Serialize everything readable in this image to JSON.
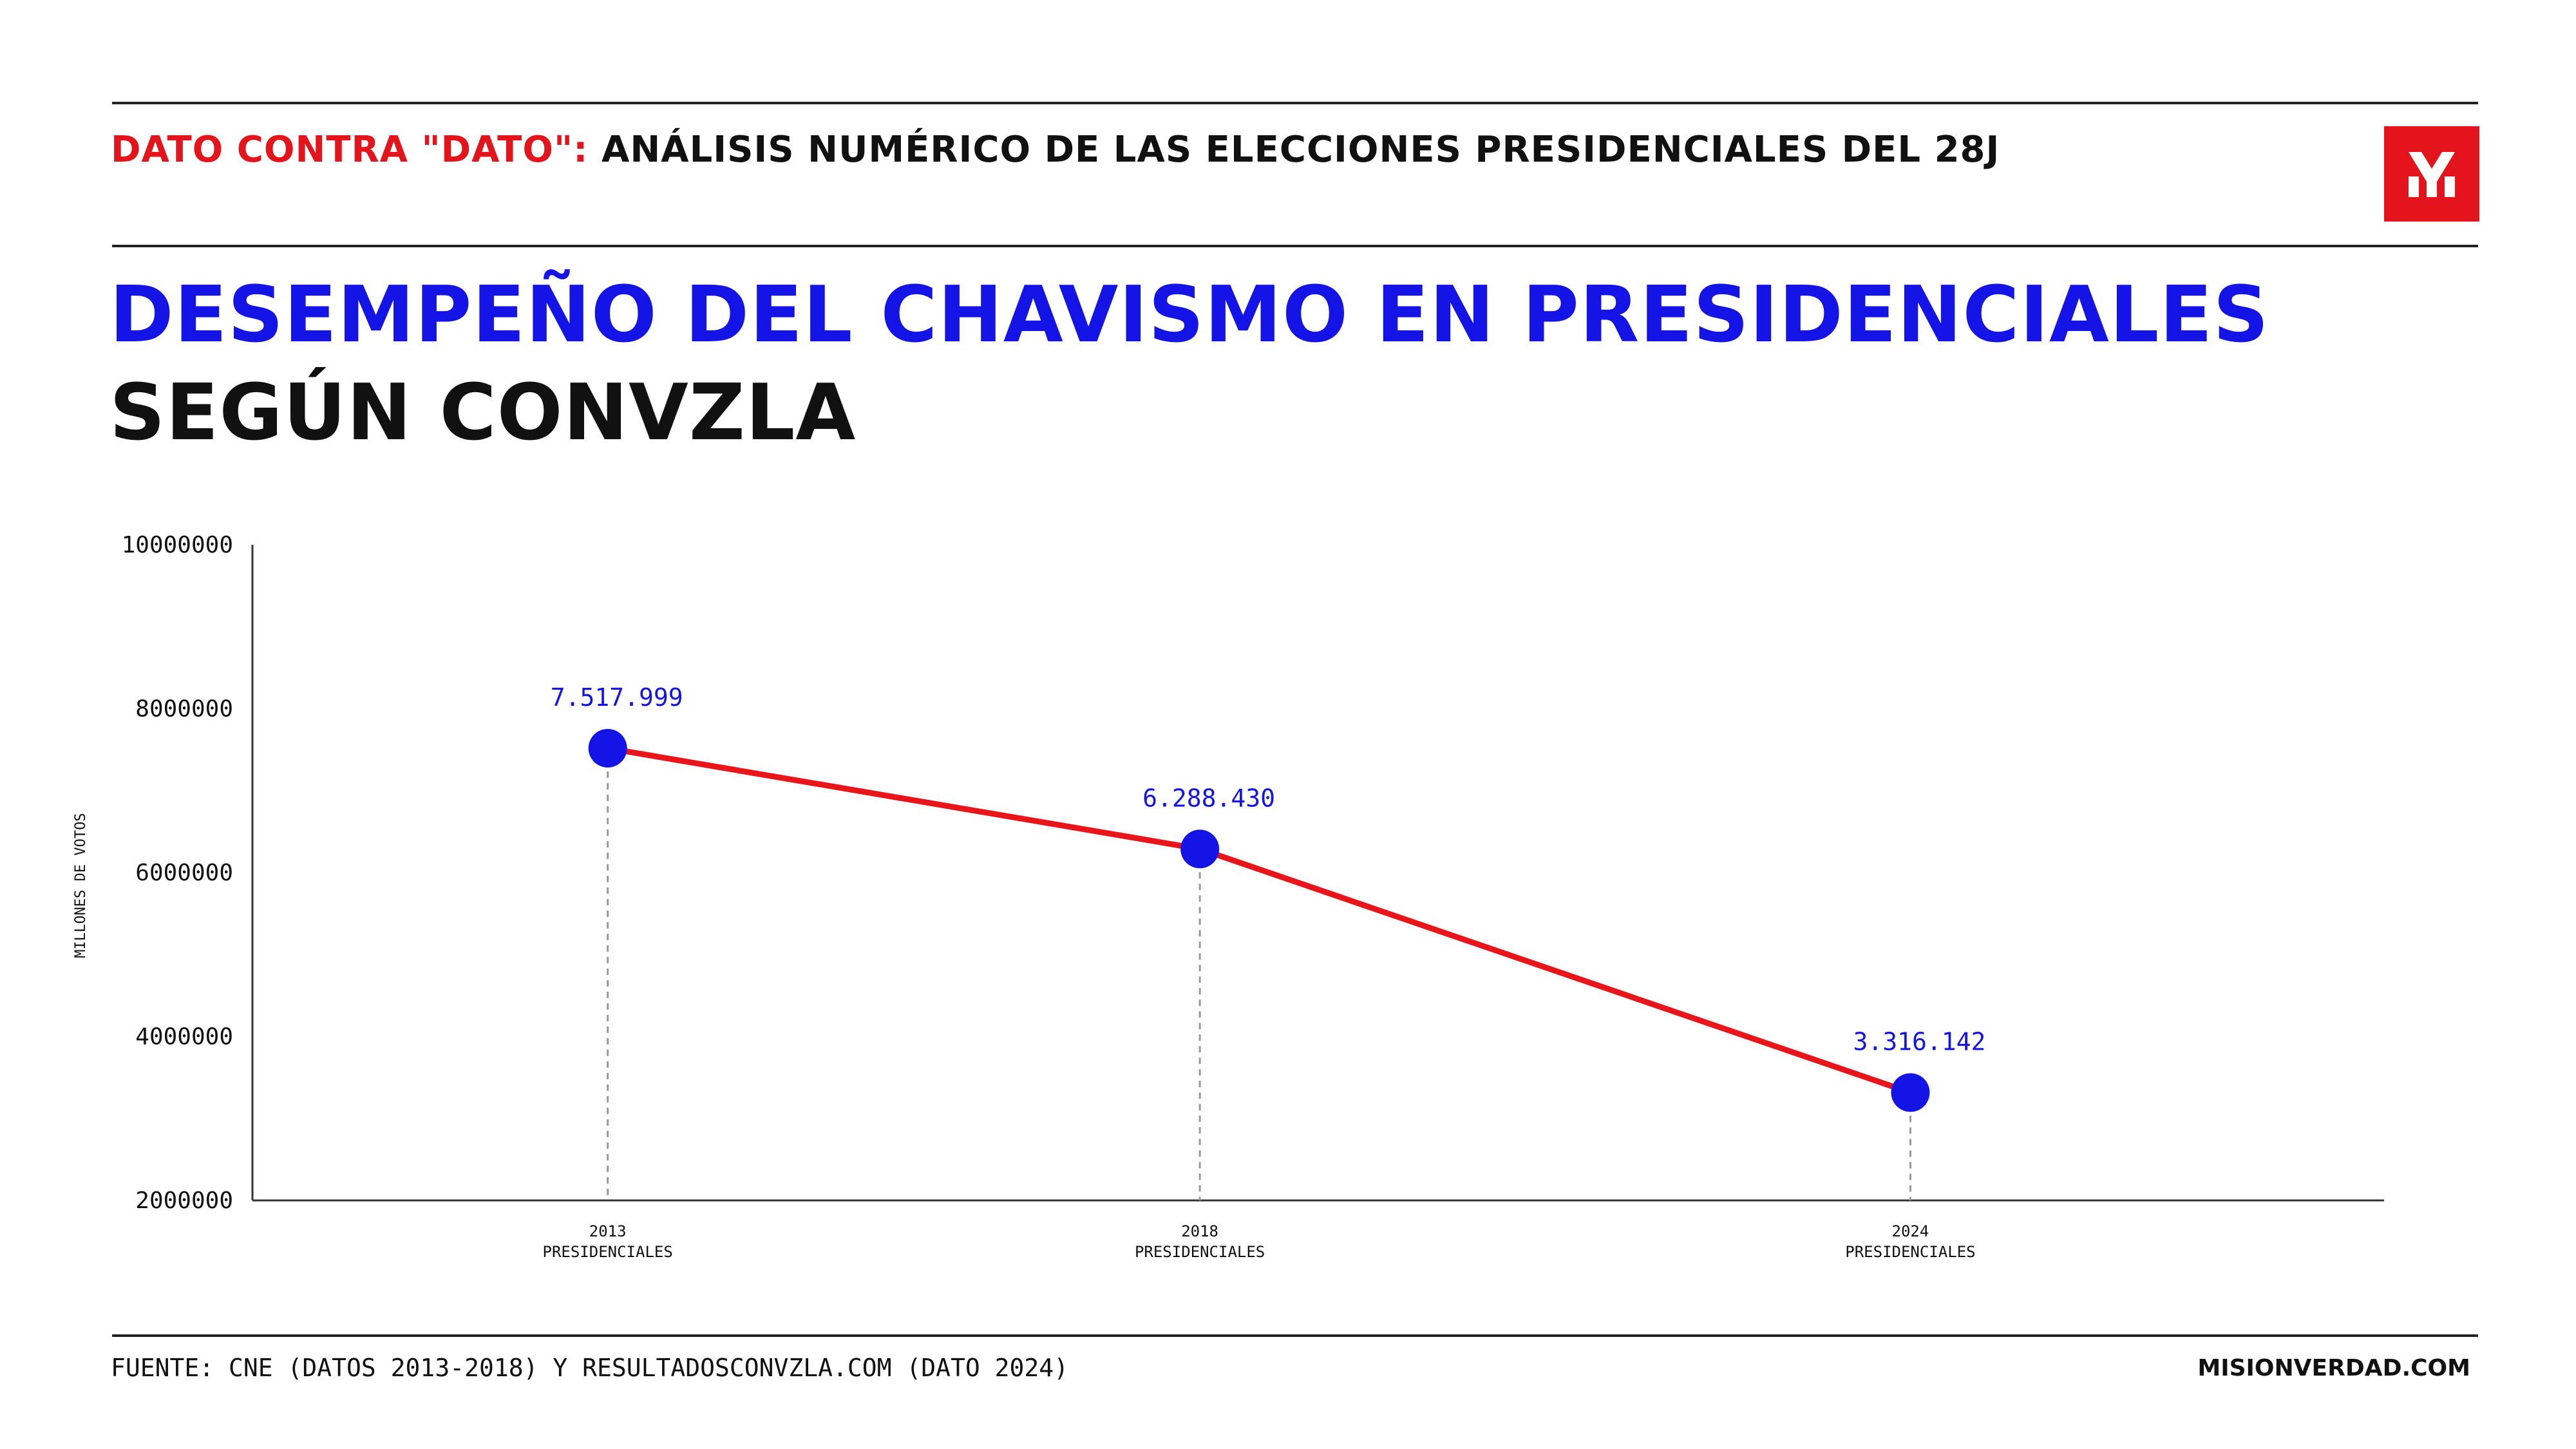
{
  "header": {
    "kicker_red": "DATO CONTRA \"DATO\":",
    "kicker_black": "ANÁLISIS NUMÉRICO DE LAS ELECCIONES PRESIDENCIALES DEL 28J",
    "logo_icon": "misionverdad-logo-icon",
    "accent_color": "#e3141b"
  },
  "title_line_1": "DESEMPEÑO DEL CHAVISMO EN PRESIDENCIALES",
  "title_line_2": "SEGÚN CONVZLA",
  "chart_data": {
    "type": "line",
    "ylabel": "MILLONES DE VOTOS",
    "ylim": [
      2000000,
      10000000
    ],
    "yticks": [
      2000000,
      4000000,
      6000000,
      8000000,
      10000000
    ],
    "ytick_labels": [
      "2000000",
      "4000000",
      "6000000",
      "8000000",
      "10000000"
    ],
    "x": [
      2013,
      2018,
      2024
    ],
    "categories": [
      {
        "year": "2013",
        "label": "PRESIDENCIALES"
      },
      {
        "year": "2018",
        "label": "PRESIDENCIALES"
      },
      {
        "year": "2024",
        "label": "PRESIDENCIALES"
      }
    ],
    "series": [
      {
        "values": [
          7517999,
          6288430,
          3316142
        ],
        "data_labels": [
          "7.517.999",
          "6.288.430",
          "3.316.142"
        ],
        "line_color": "#e8151b",
        "marker_color": "#1414e6"
      }
    ],
    "grid": false
  },
  "footer": {
    "source": "FUENTE: CNE (DATOS 2013-2018) Y RESULTADOSCONVZLA.COM (DATO 2024)",
    "site": "MISIONVERDAD.COM"
  }
}
